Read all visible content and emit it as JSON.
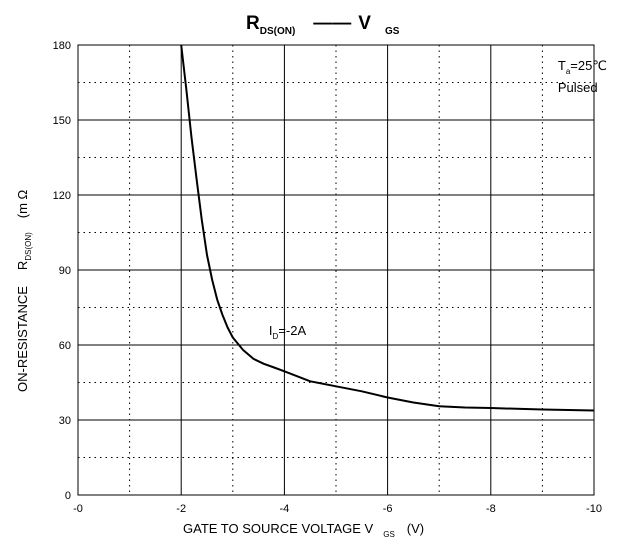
{
  "chart_data": {
    "type": "line",
    "title": {
      "main": "R",
      "main_sub": "DS(ON)",
      "dash": "——",
      "right": "V",
      "right_sub": "GS"
    },
    "xlabel": {
      "text": "GATE TO SOURCE VOLTAGE V",
      "sub": "GS",
      "unit": "(V)"
    },
    "ylabel": {
      "text": "ON-RESISTANCE",
      "symbol": "R",
      "sub": "DS(ON)",
      "unit": "(m Ω"
    },
    "xlim": [
      0,
      -10
    ],
    "ylim": [
      0,
      180
    ],
    "x_ticks": [
      0,
      -2,
      -4,
      -6,
      -8,
      -10
    ],
    "x_tick_labels": [
      "-0",
      "-2",
      "-4",
      "-6",
      "-8",
      "-10"
    ],
    "y_ticks": [
      0,
      30,
      60,
      90,
      120,
      150,
      180
    ],
    "y_tick_labels": [
      "0",
      "30",
      "60",
      "90",
      "120",
      "150",
      "180"
    ],
    "grid": {
      "major": "solid",
      "minor": "dotted"
    },
    "annotations": [
      {
        "id": "cond",
        "main": "T",
        "sub": "a",
        "rest": "=25℃",
        "line2": "Pulsed",
        "x": -9.3,
        "y": 170
      },
      {
        "id": "id",
        "main": "I",
        "sub": "D",
        "rest": "=-2A",
        "x": -3.7,
        "y": 64
      }
    ],
    "series": [
      {
        "x": [
          -2.0,
          -2.1,
          -2.2,
          -2.3,
          -2.4,
          -2.5,
          -2.6,
          -2.7,
          -2.8,
          -2.9,
          -3.0,
          -3.2,
          -3.4,
          -3.6,
          -3.8,
          -4.0,
          -4.5,
          -5.0,
          -5.5,
          -6.0,
          -6.5,
          -7.0,
          -7.5,
          -8.0,
          -8.5,
          -9.0,
          -9.5,
          -10.0
        ],
        "y": [
          180,
          162,
          143,
          126,
          110,
          96,
          86,
          78,
          72,
          67,
          63,
          58,
          54.5,
          52.5,
          51,
          49.5,
          45.5,
          43.5,
          41.5,
          39,
          37,
          35.5,
          35,
          34.8,
          34.5,
          34.2,
          34,
          33.8
        ]
      }
    ]
  }
}
